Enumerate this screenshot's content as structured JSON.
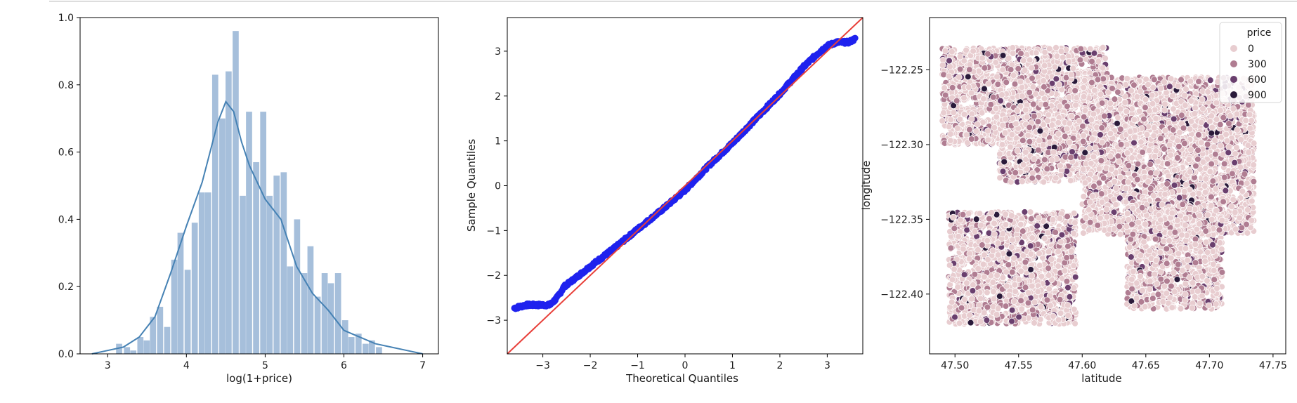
{
  "chart_data": [
    {
      "type": "bar",
      "subtype": "histogram-with-kde",
      "xlabel": "log(1+price)",
      "ylabel": "",
      "xlim": [
        2.65,
        7.2
      ],
      "ylim": [
        0,
        1.0
      ],
      "xticks": [
        3,
        4,
        5,
        6,
        7
      ],
      "yticks": [
        0.0,
        0.2,
        0.4,
        0.6,
        0.8,
        1.0
      ],
      "grid": false,
      "colors": {
        "bars": "#a6bfdb",
        "kde": "#4682b4"
      },
      "bin_width": 0.0865,
      "bins": [
        {
          "x": 3.15,
          "value": 0.03
        },
        {
          "x": 3.25,
          "value": 0.02
        },
        {
          "x": 3.33,
          "value": 0.01
        },
        {
          "x": 3.42,
          "value": 0.05
        },
        {
          "x": 3.5,
          "value": 0.04
        },
        {
          "x": 3.58,
          "value": 0.11
        },
        {
          "x": 3.67,
          "value": 0.14
        },
        {
          "x": 3.76,
          "value": 0.08
        },
        {
          "x": 3.85,
          "value": 0.28
        },
        {
          "x": 3.93,
          "value": 0.36
        },
        {
          "x": 4.02,
          "value": 0.25
        },
        {
          "x": 4.11,
          "value": 0.39
        },
        {
          "x": 4.2,
          "value": 0.48
        },
        {
          "x": 4.28,
          "value": 0.48
        },
        {
          "x": 4.37,
          "value": 0.83
        },
        {
          "x": 4.46,
          "value": 0.7
        },
        {
          "x": 4.54,
          "value": 0.84
        },
        {
          "x": 4.63,
          "value": 0.96
        },
        {
          "x": 4.72,
          "value": 0.47
        },
        {
          "x": 4.8,
          "value": 0.72
        },
        {
          "x": 4.89,
          "value": 0.57
        },
        {
          "x": 4.98,
          "value": 0.72
        },
        {
          "x": 5.06,
          "value": 0.47
        },
        {
          "x": 5.15,
          "value": 0.53
        },
        {
          "x": 5.24,
          "value": 0.54
        },
        {
          "x": 5.32,
          "value": 0.26
        },
        {
          "x": 5.41,
          "value": 0.4
        },
        {
          "x": 5.5,
          "value": 0.24
        },
        {
          "x": 5.58,
          "value": 0.32
        },
        {
          "x": 5.67,
          "value": 0.17
        },
        {
          "x": 5.76,
          "value": 0.24
        },
        {
          "x": 5.84,
          "value": 0.21
        },
        {
          "x": 5.93,
          "value": 0.24
        },
        {
          "x": 6.02,
          "value": 0.1
        },
        {
          "x": 6.1,
          "value": 0.05
        },
        {
          "x": 6.19,
          "value": 0.06
        },
        {
          "x": 6.28,
          "value": 0.03
        },
        {
          "x": 6.36,
          "value": 0.04
        },
        {
          "x": 6.45,
          "value": 0.02
        }
      ],
      "kde": {
        "x": [
          2.8,
          3.0,
          3.2,
          3.4,
          3.6,
          3.8,
          4.0,
          4.2,
          4.4,
          4.5,
          4.6,
          4.7,
          4.8,
          5.0,
          5.2,
          5.4,
          5.6,
          5.8,
          6.0,
          6.2,
          6.4,
          6.6,
          6.8,
          7.0
        ],
        "y": [
          0.0,
          0.01,
          0.02,
          0.05,
          0.11,
          0.24,
          0.38,
          0.51,
          0.69,
          0.75,
          0.72,
          0.63,
          0.56,
          0.46,
          0.4,
          0.26,
          0.18,
          0.13,
          0.07,
          0.05,
          0.03,
          0.02,
          0.01,
          0.0
        ]
      }
    },
    {
      "type": "scatter",
      "subtype": "qq-plot",
      "xlabel": "Theoretical Quantiles",
      "ylabel": "Sample Quantiles",
      "xlim": [
        -3.75,
        3.75
      ],
      "ylim": [
        -3.75,
        3.75
      ],
      "xticks": [
        -3,
        -2,
        -1,
        0,
        1,
        2,
        3
      ],
      "yticks": [
        -3,
        -2,
        -1,
        0,
        1,
        2,
        3
      ],
      "grid": false,
      "colors": {
        "points": "#1f22ee",
        "reference_line": "#e8403a"
      },
      "reference_line": {
        "from": [
          -3.75,
          -3.75
        ],
        "to": [
          3.75,
          3.75
        ]
      },
      "sample_curve": {
        "x": [
          -3.6,
          -3.35,
          -3.1,
          -2.85,
          -2.7,
          -2.55,
          -2.3,
          -2.0,
          -1.5,
          -1.0,
          -0.5,
          0.0,
          0.5,
          1.0,
          1.5,
          2.0,
          2.5,
          2.8,
          3.0,
          3.2,
          3.45,
          3.6
        ],
        "y": [
          -2.73,
          -2.66,
          -2.66,
          -2.66,
          -2.5,
          -2.25,
          -2.05,
          -1.8,
          -1.4,
          -0.97,
          -0.55,
          -0.1,
          0.45,
          0.95,
          1.5,
          2.05,
          2.65,
          2.95,
          3.12,
          3.2,
          3.2,
          3.28
        ]
      }
    },
    {
      "type": "scatter",
      "xlabel": "latitude",
      "ylabel": "longitude",
      "xlim": [
        47.48,
        47.76
      ],
      "ylim": [
        -122.44,
        -122.215
      ],
      "xticks": [
        "47.50",
        "47.55",
        "47.60",
        "47.65",
        "47.70",
        "47.75"
      ],
      "yticks": [
        "-122.25",
        "-122.30",
        "-122.35",
        "-122.40"
      ],
      "grid": false,
      "legend": {
        "title": "price",
        "position": "top-right",
        "entries": [
          {
            "label": "0",
            "color": "#e8cdd0"
          },
          {
            "label": "300",
            "color": "#b07d92"
          },
          {
            "label": "600",
            "color": "#6a3f6e"
          },
          {
            "label": "900",
            "color": "#2a1a3a"
          }
        ]
      },
      "clusters": [
        {
          "region": "north-west",
          "lat": [
            47.49,
            47.62
          ],
          "lon": [
            -122.3,
            -122.235
          ]
        },
        {
          "region": "west-middle",
          "lat": [
            47.535,
            47.61
          ],
          "lon": [
            -122.325,
            -122.28
          ]
        },
        {
          "region": "north-east",
          "lat": [
            47.6,
            47.735
          ],
          "lon": [
            -122.36,
            -122.255
          ]
        },
        {
          "region": "south-west",
          "lat": [
            47.495,
            47.595
          ],
          "lon": [
            -122.42,
            -122.345
          ]
        },
        {
          "region": "south-east",
          "lat": [
            47.635,
            47.71
          ],
          "lon": [
            -122.41,
            -122.34
          ]
        }
      ]
    }
  ]
}
